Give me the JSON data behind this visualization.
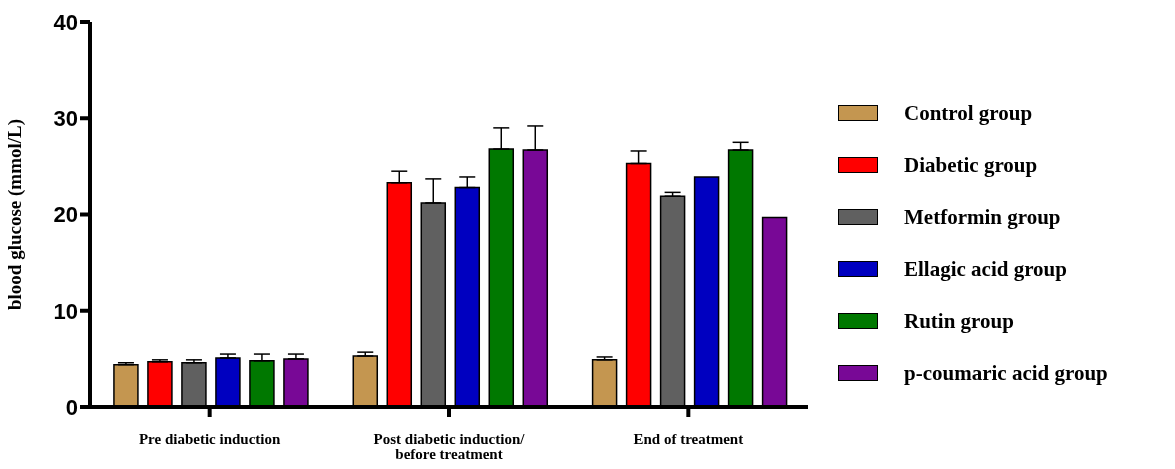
{
  "chart_data": {
    "type": "bar",
    "ylabel": "blood glucose (mmol/L)",
    "categories": [
      "Pre diabetic induction",
      "Post diabetic induction/ before treatment",
      "End of treatment"
    ],
    "series": [
      {
        "name": "Control group",
        "color": "#c49650",
        "values": [
          4.4,
          5.3,
          4.9
        ],
        "errors": [
          [
            4.4,
            4.6
          ],
          [
            5.3,
            5.7
          ],
          [
            4.9,
            5.2
          ]
        ]
      },
      {
        "name": "Diabetic group",
        "color": "#ff0000",
        "values": [
          4.7,
          23.3,
          25.3
        ],
        "errors": [
          [
            4.7,
            4.9
          ],
          [
            23.3,
            24.5
          ],
          [
            25.3,
            26.6
          ]
        ]
      },
      {
        "name": "Metformin group",
        "color": "#606060",
        "values": [
          4.6,
          21.2,
          21.9
        ],
        "errors": [
          [
            4.6,
            4.9
          ],
          [
            21.2,
            23.7
          ],
          [
            21.9,
            22.3
          ]
        ]
      },
      {
        "name": "Ellagic acid group",
        "color": "#0000c0",
        "values": [
          5.1,
          22.8,
          23.9
        ],
        "errors": [
          [
            5.1,
            5.5
          ],
          [
            22.8,
            23.9
          ],
          null
        ]
      },
      {
        "name": "Rutin group",
        "color": "#007800",
        "values": [
          4.8,
          26.8,
          26.7
        ],
        "errors": [
          [
            4.8,
            5.5
          ],
          [
            26.8,
            29.0
          ],
          [
            26.7,
            27.5
          ]
        ]
      },
      {
        "name": "p-coumaric acid group",
        "color": "#780896",
        "values": [
          5.0,
          26.7,
          19.7
        ],
        "errors": [
          [
            5.0,
            5.5
          ],
          [
            26.7,
            29.2
          ],
          null
        ]
      }
    ],
    "ylim": [
      0,
      40
    ],
    "yticks": [
      0,
      10,
      20,
      30,
      40
    ],
    "grid": false,
    "legend": "right"
  }
}
